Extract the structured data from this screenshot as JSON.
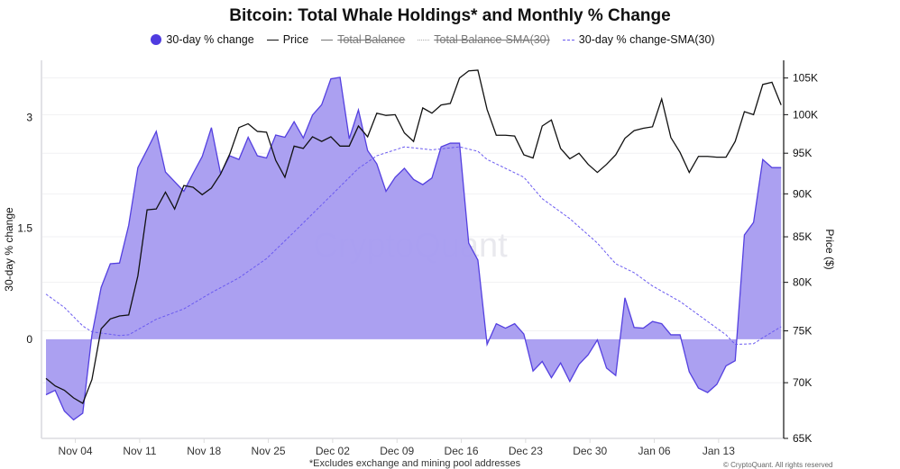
{
  "chart_data": {
    "type": "area",
    "title": "Bitcoin: Total Whale Holdings* and Monthly % Change",
    "footnote": "*Excludes exchange and mining pool addresses",
    "copyright": "© CryptoQuant. All rights reserved",
    "watermark": "CryptoQuant",
    "ylabel_left": "30-day % change",
    "ylabel_right": "Price ($)",
    "start_date": "2024-11-01",
    "x_ticks": [
      "Nov 04",
      "Nov 11",
      "Nov 18",
      "Nov 25",
      "Dec 02",
      "Dec 09",
      "Dec 16",
      "Dec 23",
      "Dec 30",
      "Jan 06",
      "Jan 13"
    ],
    "x_tick_dates": [
      "2024-11-04",
      "2024-11-11",
      "2024-11-18",
      "2024-11-25",
      "2024-12-02",
      "2024-12-09",
      "2024-12-16",
      "2024-12-23",
      "2024-12-30",
      "2025-01-06",
      "2025-01-13"
    ],
    "y_left_ticks": [
      {
        "v": 0,
        "label": "0"
      },
      {
        "v": 1.5,
        "label": "1.5"
      },
      {
        "v": 3,
        "label": "3"
      }
    ],
    "y_left_range": [
      -1.34,
      3.77
    ],
    "y_right_scale": "log",
    "y_right_range": [
      65000,
      107500
    ],
    "y_right_ticks": [
      {
        "v": 65000,
        "label": "65K"
      },
      {
        "v": 70000,
        "label": "70K"
      },
      {
        "v": 75000,
        "label": "75K"
      },
      {
        "v": 80000,
        "label": "80K"
      },
      {
        "v": 85000,
        "label": "85K"
      },
      {
        "v": 90000,
        "label": "90K"
      },
      {
        "v": 95000,
        "label": "95K"
      },
      {
        "v": 100000,
        "label": "100K"
      },
      {
        "v": 105000,
        "label": "105K"
      }
    ],
    "grid": "horizontal",
    "legend_placement": "top",
    "legend": [
      {
        "name": "30-day % change",
        "style": "dot",
        "color": "#4f3be0",
        "enabled": true
      },
      {
        "name": "Price",
        "style": "line",
        "color": "#111111",
        "enabled": true
      },
      {
        "name": "Total Balance",
        "style": "line",
        "color": "#777777",
        "enabled": false
      },
      {
        "name": "Total Balance-SMA(30)",
        "style": "dotted",
        "color": "#aaaaaa",
        "enabled": false
      },
      {
        "name": "30-day % change-SMA(30)",
        "style": "dashed",
        "color": "#6a5af0",
        "enabled": true
      }
    ],
    "series": [
      {
        "name": "30-day % change",
        "axis": "left",
        "type": "area",
        "color": "#5440e0",
        "fill": "#a69bf0",
        "values": [
          -0.75,
          -0.69,
          -0.97,
          -1.09,
          -1.0,
          0.06,
          0.7,
          1.02,
          1.03,
          1.54,
          2.32,
          2.56,
          2.81,
          2.26,
          2.13,
          2.0,
          2.24,
          2.47,
          2.86,
          2.24,
          2.48,
          2.43,
          2.73,
          2.48,
          2.45,
          2.76,
          2.73,
          2.94,
          2.72,
          3.03,
          3.17,
          3.52,
          3.54,
          2.71,
          3.1,
          2.55,
          2.37,
          2.0,
          2.19,
          2.31,
          2.16,
          2.09,
          2.18,
          2.6,
          2.65,
          2.65,
          1.3,
          1.07,
          -0.07,
          0.21,
          0.15,
          0.21,
          0.07,
          -0.43,
          -0.3,
          -0.52,
          -0.32,
          -0.57,
          -0.34,
          -0.21,
          -0.01,
          -0.39,
          -0.49,
          0.56,
          0.16,
          0.15,
          0.24,
          0.21,
          0.06,
          0.06,
          -0.44,
          -0.66,
          -0.72,
          -0.61,
          -0.36,
          -0.29,
          1.41,
          1.58,
          2.43,
          2.32,
          2.32
        ]
      },
      {
        "name": "Price",
        "axis": "right",
        "type": "line",
        "color": "#111111",
        "values": [
          70400,
          69700,
          69300,
          68600,
          68100,
          70300,
          75200,
          76200,
          76500,
          76600,
          80700,
          88100,
          88200,
          90200,
          88200,
          91000,
          90800,
          89900,
          90700,
          92400,
          94900,
          98300,
          98800,
          97800,
          97700,
          94100,
          92000,
          95900,
          95600,
          97100,
          96500,
          97100,
          95900,
          95900,
          98500,
          97100,
          100200,
          99900,
          100000,
          97600,
          96500,
          100900,
          100200,
          101300,
          101500,
          105000,
          106000,
          106100,
          100700,
          97300,
          97300,
          97200,
          94800,
          94400,
          98500,
          99300,
          95600,
          94300,
          95000,
          93600,
          92600,
          93600,
          94800,
          96900,
          97900,
          98200,
          98400,
          102100,
          97000,
          95100,
          92600,
          94600,
          94600,
          94500,
          94500,
          96500,
          100400,
          100000,
          104100,
          104400,
          101300
        ]
      },
      {
        "name": "30-day % change-SMA(30)",
        "axis": "left",
        "type": "line",
        "style": "dashed",
        "color": "#6a5af0",
        "dates": [
          "2024-11-01",
          "2024-11-03",
          "2024-11-05",
          "2024-11-06",
          "2024-11-09",
          "2024-11-10",
          "2024-11-13",
          "2024-11-16",
          "2024-11-19",
          "2024-11-22",
          "2024-11-25",
          "2024-11-28",
          "2024-12-02",
          "2024-12-05",
          "2024-12-07",
          "2024-12-10",
          "2024-12-13",
          "2024-12-16",
          "2024-12-18",
          "2024-12-19",
          "2024-12-23",
          "2024-12-25",
          "2024-12-28",
          "2024-12-31",
          "2025-01-02",
          "2025-01-04",
          "2025-01-06",
          "2025-01-09",
          "2025-01-12",
          "2025-01-14",
          "2025-01-15",
          "2025-01-17",
          "2025-01-18",
          "2025-01-20"
        ],
        "values": [
          0.61,
          0.43,
          0.18,
          0.1,
          0.05,
          0.06,
          0.27,
          0.41,
          0.63,
          0.83,
          1.09,
          1.45,
          1.94,
          2.31,
          2.48,
          2.6,
          2.56,
          2.6,
          2.54,
          2.43,
          2.19,
          1.9,
          1.63,
          1.3,
          1.02,
          0.9,
          0.72,
          0.51,
          0.24,
          0.06,
          -0.07,
          -0.06,
          0.02,
          0.17
        ]
      }
    ]
  }
}
